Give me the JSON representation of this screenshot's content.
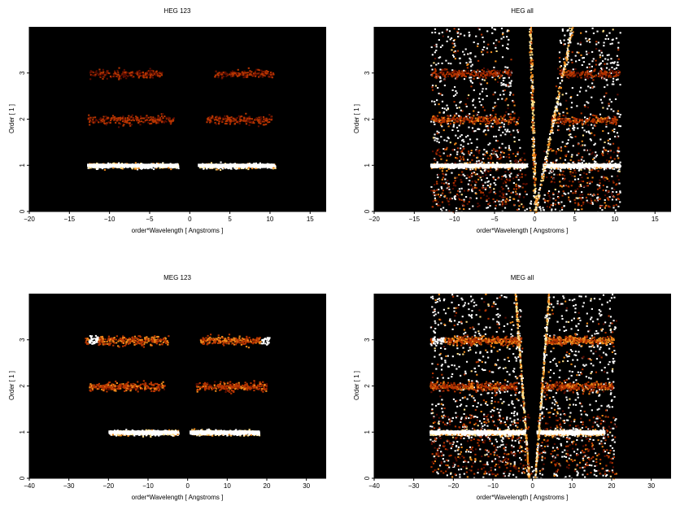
{
  "chart_data": [
    {
      "type": "heatmap",
      "title": "HEG 123",
      "xlabel": "order*Wavelength [ Angstroms ]",
      "ylabel": "Order [ 1 ]",
      "xlim": [
        -20,
        17
      ],
      "ylim": [
        0,
        4
      ],
      "xticks": [
        -20,
        -15,
        -10,
        -5,
        0,
        5,
        10,
        15
      ],
      "yticks": [
        0,
        1,
        2,
        3
      ],
      "colormap": [
        "#000000",
        "#5a0c00",
        "#b53400",
        "#f08a1a",
        "#ffe08a",
        "#ffffff"
      ],
      "bands": [
        {
          "order": 1,
          "x_ranges": [
            [
              -12.8,
              -1.5
            ],
            [
              1.0,
              10.6
            ]
          ],
          "intensity": 0.95,
          "peaks": [
            -5.5,
            5.0,
            9.0
          ]
        },
        {
          "order": 2,
          "x_ranges": [
            [
              -12.8,
              -2.0
            ],
            [
              2.0,
              10.2
            ]
          ],
          "intensity": 0.45
        },
        {
          "order": 3,
          "x_ranges": [
            [
              -12.5,
              -3.5
            ],
            [
              3.0,
              10.5
            ]
          ],
          "intensity": 0.4
        }
      ],
      "diagonal_tracks": []
    },
    {
      "type": "heatmap",
      "title": "HEG all",
      "xlabel": "order*Wavelength [ Angstroms ]",
      "ylabel": "Order [ 1 ]",
      "xlim": [
        -20,
        17
      ],
      "ylim": [
        0,
        4
      ],
      "xticks": [
        -20,
        -15,
        -10,
        -5,
        0,
        5,
        10,
        15
      ],
      "yticks": [
        0,
        1,
        2,
        3
      ],
      "colormap": [
        "#000000",
        "#5a0c00",
        "#b53400",
        "#f08a1a",
        "#ffe08a",
        "#ffffff"
      ],
      "bands": [
        {
          "order": 1,
          "x_ranges": [
            [
              -13.0,
              -1.0
            ],
            [
              1.0,
              10.6
            ]
          ],
          "intensity": 0.95,
          "peaks": [
            -10.0,
            5.0,
            9.0
          ]
        },
        {
          "order": 2,
          "x_ranges": [
            [
              -13.0,
              -2.0
            ],
            [
              2.0,
              10.2
            ]
          ],
          "intensity": 0.5
        },
        {
          "order": 3,
          "x_ranges": [
            [
              -13.0,
              -3.0
            ],
            [
              3.0,
              10.5
            ]
          ],
          "intensity": 0.45
        }
      ],
      "diagonal_tracks": [
        {
          "x_at_y0": 0.0,
          "x_at_ytop": -0.6,
          "intensity": 0.9
        },
        {
          "x_at_y0": 0.0,
          "x_at_ytop": 4.6,
          "intensity": 1.0
        }
      ],
      "scatter_region": {
        "x_range": [
          -13.0,
          10.6
        ],
        "y_range": [
          0.0,
          4.0
        ]
      }
    },
    {
      "type": "heatmap",
      "title": "MEG 123",
      "xlabel": "order*Wavelength [ Angstroms ]",
      "ylabel": "Order [ 1 ]",
      "xlim": [
        -40,
        35
      ],
      "ylim": [
        0,
        4
      ],
      "xticks": [
        -40,
        -30,
        -20,
        -10,
        0,
        10,
        20,
        30
      ],
      "yticks": [
        0,
        1,
        2,
        3
      ],
      "colormap": [
        "#000000",
        "#5a0c00",
        "#b53400",
        "#f08a1a",
        "#ffe08a",
        "#ffffff"
      ],
      "bands": [
        {
          "order": 1,
          "x_ranges": [
            [
              -20.0,
              -2.5
            ],
            [
              0.5,
              18.0
            ]
          ],
          "intensity": 0.95,
          "peaks": [
            -13.0,
            -8.0,
            12.0
          ]
        },
        {
          "order": 2,
          "x_ranges": [
            [
              -25.0,
              -6.0
            ],
            [
              2.0,
              20.0
            ]
          ],
          "intensity": 0.5
        },
        {
          "order": 3,
          "x_ranges": [
            [
              -26.0,
              -5.0
            ],
            [
              3.0,
              20.5
            ]
          ],
          "intensity": 0.55,
          "peaks": [
            -24.0,
            19.5
          ]
        }
      ],
      "diagonal_tracks": []
    },
    {
      "type": "heatmap",
      "title": "MEG all",
      "xlabel": "order*Wavelength [ Angstroms ]",
      "ylabel": "Order [ 1 ]",
      "xlim": [
        -40,
        35
      ],
      "ylim": [
        0,
        4
      ],
      "xticks": [
        -40,
        -30,
        -20,
        -10,
        0,
        10,
        20,
        30
      ],
      "yticks": [
        0,
        1,
        2,
        3
      ],
      "colormap": [
        "#000000",
        "#5a0c00",
        "#b53400",
        "#f08a1a",
        "#ffe08a",
        "#ffffff"
      ],
      "bands": [
        {
          "order": 1,
          "x_ranges": [
            [
              -26.0,
              -2.0
            ],
            [
              1.0,
              18.0
            ]
          ],
          "intensity": 0.95,
          "peaks": [
            -13.0,
            10.0
          ]
        },
        {
          "order": 2,
          "x_ranges": [
            [
              -26.0,
              -4.0
            ],
            [
              2.0,
              20.0
            ]
          ],
          "intensity": 0.5
        },
        {
          "order": 3,
          "x_ranges": [
            [
              -26.0,
              -3.0
            ],
            [
              3.0,
              20.5
            ]
          ],
          "intensity": 0.55,
          "peaks": [
            -24.0
          ]
        }
      ],
      "diagonal_tracks": [
        {
          "x_at_y0": -1.0,
          "x_at_ytop": -4.5,
          "intensity": 0.9
        },
        {
          "x_at_y0": 0.5,
          "x_at_ytop": 4.0,
          "intensity": 1.0
        }
      ],
      "scatter_region": {
        "x_range": [
          -26.0,
          21.0
        ],
        "y_range": [
          0.0,
          4.0
        ]
      }
    }
  ]
}
